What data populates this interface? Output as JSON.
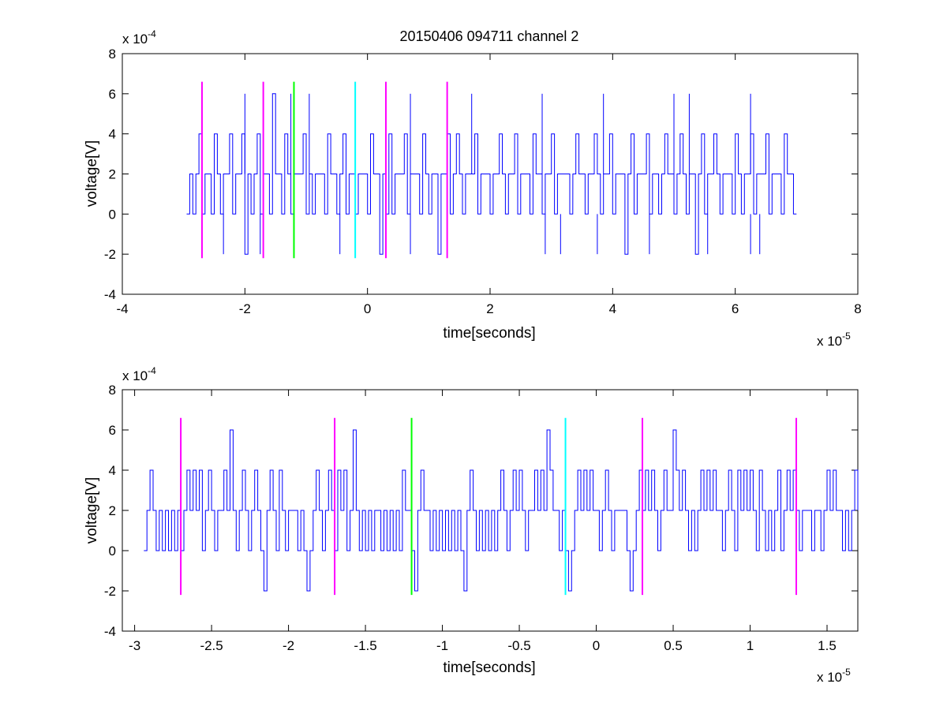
{
  "chart_data": [
    {
      "type": "line",
      "title": "20150406 094711 channel 2",
      "xlabel": "time[seconds]",
      "ylabel": "voltage[V]",
      "xlim": [
        -4,
        8
      ],
      "ylim": [
        -4,
        8
      ],
      "xticks": [
        -4,
        -2,
        0,
        2,
        4,
        6,
        8
      ],
      "yticks": [
        -4,
        -2,
        0,
        2,
        4,
        6,
        8
      ],
      "xtick_labels": [
        "-4",
        "-2",
        "0",
        "2",
        "4",
        "6",
        "8"
      ],
      "ytick_labels": [
        "-4",
        "-2",
        "0",
        "2",
        "4",
        "6",
        "8"
      ],
      "x_exponent": {
        "base": "x 10",
        "power": "-5"
      },
      "y_exponent": {
        "base": "x 10",
        "power": "-4"
      },
      "grid": false,
      "signal": {
        "color": "#0000ff",
        "x_start": -2.95,
        "x_end": 7.0,
        "dt": 0.05,
        "values": [
          0,
          2,
          0,
          2,
          4,
          0,
          2,
          2,
          0,
          4,
          2,
          0,
          2,
          2,
          4,
          0,
          2,
          2,
          4,
          -2,
          2,
          0,
          2,
          4,
          0,
          2,
          2,
          0,
          6,
          2,
          2,
          0,
          4,
          2,
          0,
          2,
          2,
          2,
          4,
          0,
          2,
          0,
          2,
          2,
          2,
          0,
          4,
          2,
          2,
          0,
          2,
          4,
          0,
          2,
          2,
          0,
          2,
          2,
          2,
          0,
          4,
          2,
          2,
          -2,
          2,
          0,
          4,
          0,
          2,
          2,
          2,
          4,
          0,
          2,
          2,
          2,
          0,
          4,
          2,
          0,
          2,
          2,
          -2,
          2,
          2,
          4,
          0,
          2,
          4,
          2,
          0,
          2,
          2,
          2,
          4,
          0,
          2,
          2,
          2,
          0,
          2,
          2,
          4,
          2,
          0,
          2,
          2,
          4,
          0,
          2,
          2,
          2,
          0,
          4,
          2,
          2,
          0,
          2,
          2,
          4,
          0,
          2,
          2,
          2,
          2,
          0,
          2,
          4,
          2,
          2,
          0,
          2,
          2,
          4,
          2,
          0,
          2,
          2,
          4,
          0,
          2,
          2,
          2,
          -2,
          2,
          4,
          0,
          2,
          2,
          2,
          4,
          0,
          2,
          2,
          0,
          2,
          4,
          2,
          2,
          0,
          2,
          4,
          2,
          0,
          2,
          2,
          -2,
          2,
          4,
          0,
          2,
          2,
          4,
          2,
          0,
          2,
          2,
          2,
          0,
          4,
          2,
          0,
          2,
          2,
          4,
          0,
          2,
          2,
          2,
          4,
          0,
          2,
          2,
          2,
          0,
          4,
          2,
          2,
          0,
          2,
          2,
          4,
          0,
          2
        ],
        "spikes_up": [
          -2.0,
          -1.25,
          -0.95,
          0.7,
          1.7,
          2.85,
          3.85,
          5.0,
          5.25,
          6.25
        ],
        "spikes_down": [
          -2.35,
          -1.75,
          -0.45,
          0.7,
          2.9,
          3.15,
          3.75,
          4.6,
          5.55,
          6.25,
          6.4
        ]
      },
      "markers": [
        {
          "x": -2.7,
          "color": "#ff00ff"
        },
        {
          "x": -1.7,
          "color": "#ff00ff"
        },
        {
          "x": -1.2,
          "color": "#00ff00"
        },
        {
          "x": -0.2,
          "color": "#00ffff"
        },
        {
          "x": 0.3,
          "color": "#ff00ff"
        },
        {
          "x": 1.3,
          "color": "#ff00ff"
        }
      ],
      "marker_range": [
        -2.2,
        6.6
      ]
    },
    {
      "type": "line",
      "xlabel": "time[seconds]",
      "ylabel": "voltage[V]",
      "xlim": [
        -3.08,
        1.7
      ],
      "ylim": [
        -4,
        8
      ],
      "xticks": [
        -3,
        -2.5,
        -2,
        -1.5,
        -1,
        -0.5,
        0,
        0.5,
        1,
        1.5
      ],
      "yticks": [
        -4,
        -2,
        0,
        2,
        4,
        6,
        8
      ],
      "xtick_labels": [
        "-3",
        "-2.5",
        "-2",
        "-1.5",
        "-1",
        "-0.5",
        "0",
        "0.5",
        "1",
        "1.5"
      ],
      "ytick_labels": [
        "-4",
        "-2",
        "0",
        "2",
        "4",
        "6",
        "8"
      ],
      "x_exponent": {
        "base": "x 10",
        "power": "-5"
      },
      "y_exponent": {
        "base": "x 10",
        "power": "-4"
      },
      "grid": false,
      "signal": {
        "color": "#0000ff",
        "x_start": -2.94,
        "x_end": 1.7,
        "dt": 0.02,
        "values": [
          0,
          2,
          4,
          2,
          0,
          2,
          0,
          2,
          0,
          2,
          0,
          2,
          0,
          2,
          4,
          2,
          4,
          2,
          4,
          0,
          2,
          4,
          2,
          0,
          2,
          2,
          4,
          2,
          6,
          2,
          0,
          2,
          4,
          2,
          0,
          2,
          4,
          2,
          0,
          -2,
          2,
          4,
          2,
          0,
          4,
          2,
          0,
          2,
          2,
          2,
          0,
          2,
          0,
          -2,
          0,
          2,
          4,
          2,
          0,
          2,
          4,
          2,
          0,
          4,
          2,
          4,
          0,
          2,
          6,
          2,
          0,
          2,
          0,
          2,
          0,
          2,
          2,
          0,
          2,
          0,
          2,
          0,
          2,
          0,
          4,
          2,
          2,
          0,
          -2,
          2,
          4,
          2,
          2,
          0,
          2,
          0,
          2,
          0,
          2,
          0,
          2,
          0,
          2,
          0,
          -2,
          2,
          4,
          2,
          0,
          2,
          0,
          2,
          0,
          2,
          0,
          2,
          4,
          2,
          0,
          2,
          4,
          2,
          4,
          2,
          0,
          2,
          2,
          4,
          2,
          4,
          2,
          6,
          4,
          2,
          2,
          0,
          2,
          0,
          -2,
          0,
          2,
          4,
          2,
          4,
          2,
          4,
          2,
          2,
          0,
          2,
          4,
          2,
          0,
          2,
          2,
          2,
          2,
          0,
          -2,
          0,
          2,
          4,
          2,
          4,
          2,
          4,
          2,
          0,
          2,
          4,
          2,
          2,
          6,
          4,
          2,
          4,
          2,
          0,
          2,
          0,
          2,
          4,
          2,
          4,
          2,
          4,
          2,
          2,
          0,
          2,
          4,
          2,
          0,
          4,
          2,
          4,
          2,
          4,
          2,
          0,
          4,
          2,
          0,
          2,
          0,
          2,
          4,
          0,
          2,
          4,
          2,
          4,
          2,
          0,
          2,
          2,
          2,
          0,
          2,
          2,
          0,
          2,
          4,
          2,
          4,
          2,
          2,
          0,
          2,
          0,
          2,
          4,
          2,
          2,
          4,
          2,
          4,
          2,
          4,
          2,
          0,
          2,
          0,
          2,
          2
        ]
      },
      "markers": [
        {
          "x": -2.7,
          "color": "#ff00ff"
        },
        {
          "x": -1.7,
          "color": "#ff00ff"
        },
        {
          "x": -1.2,
          "color": "#00ff00"
        },
        {
          "x": -0.2,
          "color": "#00ffff"
        },
        {
          "x": 0.3,
          "color": "#ff00ff"
        },
        {
          "x": 1.3,
          "color": "#ff00ff"
        }
      ],
      "marker_range": [
        -2.2,
        6.6
      ]
    }
  ]
}
